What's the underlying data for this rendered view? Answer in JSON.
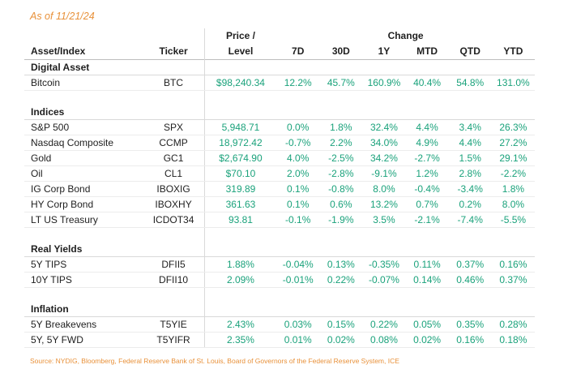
{
  "as_of": "As of 11/21/24",
  "header": {
    "asset": "Asset/Index",
    "ticker": "Ticker",
    "price_line1": "Price /",
    "price_line2": "Level",
    "change": "Change",
    "cols": [
      "7D",
      "30D",
      "1Y",
      "MTD",
      "QTD",
      "YTD"
    ]
  },
  "sections": [
    {
      "title": "Digital Asset",
      "rows": [
        {
          "name": "Bitcoin",
          "ticker": "BTC",
          "price": "$98,240.34",
          "values": [
            "12.2%",
            "45.7%",
            "160.9%",
            "40.4%",
            "54.8%",
            "131.0%"
          ]
        }
      ]
    },
    {
      "title": "Indices",
      "rows": [
        {
          "name": "S&P 500",
          "ticker": "SPX",
          "price": "5,948.71",
          "values": [
            "0.0%",
            "1.8%",
            "32.4%",
            "4.4%",
            "3.4%",
            "26.3%"
          ]
        },
        {
          "name": "Nasdaq Composite",
          "ticker": "CCMP",
          "price": "18,972.42",
          "values": [
            "-0.7%",
            "2.2%",
            "34.0%",
            "4.9%",
            "4.4%",
            "27.2%"
          ]
        },
        {
          "name": "Gold",
          "ticker": "GC1",
          "price": "$2,674.90",
          "values": [
            "4.0%",
            "-2.5%",
            "34.2%",
            "-2.7%",
            "1.5%",
            "29.1%"
          ]
        },
        {
          "name": "Oil",
          "ticker": "CL1",
          "price": "$70.10",
          "values": [
            "2.0%",
            "-2.8%",
            "-9.1%",
            "1.2%",
            "2.8%",
            "-2.2%"
          ]
        },
        {
          "name": "IG Corp Bond",
          "ticker": "IBOXIG",
          "price": "319.89",
          "values": [
            "0.1%",
            "-0.8%",
            "8.0%",
            "-0.4%",
            "-3.4%",
            "1.8%"
          ]
        },
        {
          "name": "HY Corp Bond",
          "ticker": "IBOXHY",
          "price": "361.63",
          "values": [
            "0.1%",
            "0.6%",
            "13.2%",
            "0.7%",
            "0.2%",
            "8.0%"
          ]
        },
        {
          "name": "LT US Treasury",
          "ticker": "ICDOT34",
          "price": "93.81",
          "values": [
            "-0.1%",
            "-1.9%",
            "3.5%",
            "-2.1%",
            "-7.4%",
            "-5.5%"
          ]
        }
      ]
    },
    {
      "title": "Real Yields",
      "rows": [
        {
          "name": "5Y TIPS",
          "ticker": "DFII5",
          "price": "1.88%",
          "values": [
            "-0.04%",
            "0.13%",
            "-0.35%",
            "0.11%",
            "0.37%",
            "0.16%"
          ]
        },
        {
          "name": "10Y TIPS",
          "ticker": "DFII10",
          "price": "2.09%",
          "values": [
            "-0.01%",
            "0.22%",
            "-0.07%",
            "0.14%",
            "0.46%",
            "0.37%"
          ]
        }
      ]
    },
    {
      "title": "Inflation",
      "rows": [
        {
          "name": "5Y Breakevens",
          "ticker": "T5YIE",
          "price": "2.43%",
          "values": [
            "0.03%",
            "0.15%",
            "0.22%",
            "0.05%",
            "0.35%",
            "0.28%"
          ]
        },
        {
          "name": "5Y, 5Y FWD",
          "ticker": "T5YIFR",
          "price": "2.35%",
          "values": [
            "0.01%",
            "0.02%",
            "0.08%",
            "0.02%",
            "0.16%",
            "0.18%"
          ]
        }
      ]
    }
  ],
  "source": "Source: NYDIG, Bloomberg, Federal Reserve Bank of St. Louis, Board of Governors of the Federal Reserve System, ICE",
  "colors": {
    "accent": "#e8913a",
    "value": "#1aa27b"
  }
}
